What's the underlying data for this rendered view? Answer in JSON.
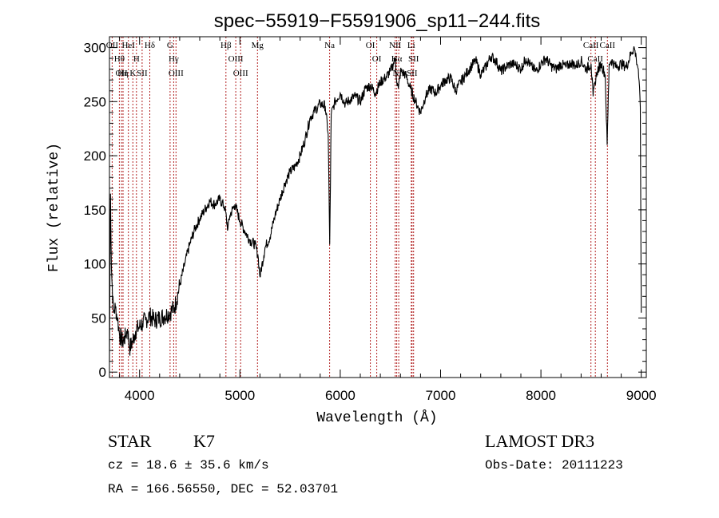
{
  "chart_data": {
    "type": "line",
    "title": "spec−55919−F5591906_sp11−244.fits",
    "xlabel": "Wavelength (Å)",
    "ylabel": "Flux (relative)",
    "xlim": [
      3700,
      9050
    ],
    "ylim": [
      -5,
      310
    ],
    "xticks": [
      4000,
      5000,
      6000,
      7000,
      8000,
      9000
    ],
    "yticks": [
      0,
      50,
      100,
      150,
      200,
      250,
      300
    ],
    "series": [
      {
        "name": "flux",
        "x": [
          3700,
          3710,
          3720,
          3740,
          3760,
          3780,
          3800,
          3830,
          3860,
          3880,
          3900,
          3930,
          3960,
          4000,
          4030,
          4060,
          4100,
          4150,
          4200,
          4250,
          4300,
          4350,
          4400,
          4450,
          4500,
          4550,
          4600,
          4650,
          4700,
          4750,
          4800,
          4850,
          4880,
          4900,
          4950,
          5000,
          5050,
          5100,
          5150,
          5180,
          5200,
          5250,
          5300,
          5350,
          5400,
          5450,
          5500,
          5550,
          5600,
          5650,
          5700,
          5750,
          5800,
          5850,
          5880,
          5895,
          5910,
          5930,
          5950,
          6000,
          6050,
          6100,
          6150,
          6200,
          6250,
          6300,
          6350,
          6400,
          6450,
          6500,
          6550,
          6563,
          6580,
          6600,
          6650,
          6700,
          6750,
          6800,
          6850,
          6900,
          6950,
          7000,
          7050,
          7100,
          7150,
          7200,
          7250,
          7300,
          7350,
          7400,
          7450,
          7500,
          7550,
          7600,
          7650,
          7700,
          7750,
          7800,
          7850,
          7900,
          7950,
          8000,
          8050,
          8100,
          8150,
          8200,
          8250,
          8300,
          8350,
          8400,
          8450,
          8500,
          8520,
          8540,
          8560,
          8600,
          8640,
          8660,
          8680,
          8700,
          8750,
          8800,
          8850,
          8900,
          8930,
          8950,
          8970,
          8990,
          9000
        ],
        "values": [
          10,
          165,
          95,
          55,
          60,
          50,
          35,
          28,
          33,
          40,
          22,
          28,
          38,
          42,
          45,
          48,
          52,
          48,
          50,
          52,
          55,
          60,
          80,
          100,
          118,
          132,
          142,
          150,
          158,
          155,
          160,
          152,
          132,
          145,
          155,
          140,
          130,
          122,
          118,
          108,
          88,
          115,
          125,
          145,
          160,
          175,
          185,
          190,
          200,
          215,
          235,
          242,
          248,
          246,
          220,
          118,
          238,
          245,
          250,
          258,
          248,
          252,
          255,
          250,
          262,
          265,
          258,
          268,
          272,
          278,
          290,
          268,
          262,
          278,
          275,
          262,
          250,
          240,
          255,
          262,
          258,
          265,
          270,
          272,
          260,
          268,
          275,
          282,
          288,
          275,
          282,
          292,
          288,
          278,
          282,
          285,
          284,
          280,
          290,
          283,
          278,
          285,
          290,
          283,
          280,
          285,
          282,
          286,
          283,
          288,
          280,
          285,
          255,
          268,
          278,
          285,
          275,
          210,
          285,
          288,
          282,
          285,
          282,
          295,
          300,
          290,
          280,
          245,
          55
        ]
      }
    ],
    "line_markers": [
      {
        "wavelength": 3727,
        "label": "OII"
      },
      {
        "wavelength": 3799,
        "label": "Hθ"
      },
      {
        "wavelength": 3820,
        "label": "OII"
      },
      {
        "wavelength": 3835,
        "label": "Hη"
      },
      {
        "wavelength": 3889,
        "label": "HeI"
      },
      {
        "wavelength": 3933,
        "label": "K"
      },
      {
        "wavelength": 3969,
        "label": "H"
      },
      {
        "wavelength": 4026,
        "label": "SII"
      },
      {
        "wavelength": 4102,
        "label": "Hδ"
      },
      {
        "wavelength": 4304,
        "label": "G"
      },
      {
        "wavelength": 4340,
        "label": "Hγ"
      },
      {
        "wavelength": 4363,
        "label": "OIII"
      },
      {
        "wavelength": 4861,
        "label": "Hβ"
      },
      {
        "wavelength": 4959,
        "label": "OIII"
      },
      {
        "wavelength": 5007,
        "label": "OIII"
      },
      {
        "wavelength": 5175,
        "label": "Mg"
      },
      {
        "wavelength": 5894,
        "label": "Na"
      },
      {
        "wavelength": 6300,
        "label": "OI"
      },
      {
        "wavelength": 6364,
        "label": "OI"
      },
      {
        "wavelength": 6548,
        "label": "NII"
      },
      {
        "wavelength": 6563,
        "label": "Hα"
      },
      {
        "wavelength": 6583,
        "label": "NII"
      },
      {
        "wavelength": 6708,
        "label": "Li"
      },
      {
        "wavelength": 6716,
        "label": "SII"
      },
      {
        "wavelength": 6731,
        "label": "SII"
      },
      {
        "wavelength": 8498,
        "label": "CaII"
      },
      {
        "wavelength": 8542,
        "label": "CaII"
      },
      {
        "wavelength": 8662,
        "label": "CaII"
      }
    ]
  },
  "info": {
    "class": "STAR",
    "subclass": "K7",
    "survey": "LAMOST DR3",
    "cz": "cz = 18.6 ± 35.6 km/s",
    "obs_date": "Obs-Date: 20111223",
    "coords": "RA = 166.56550, DEC =  52.03701"
  }
}
